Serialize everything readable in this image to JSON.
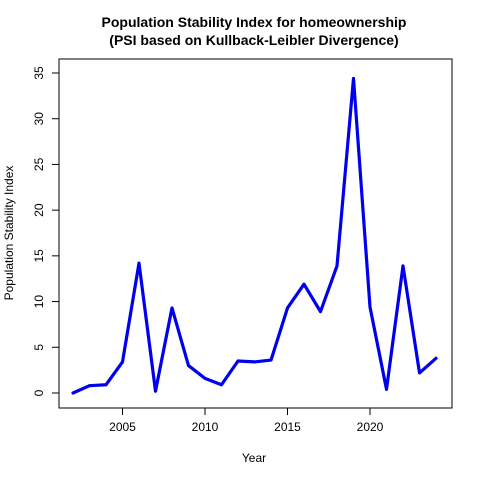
{
  "chart_data": {
    "type": "line",
    "title": "Population Stability Index for homeownership",
    "subtitle": "(PSI based on Kullback-Leibler Divergence)",
    "xlabel": "Year",
    "ylabel": "Population Stability Index",
    "xlim": [
      2002,
      2024
    ],
    "ylim": [
      0,
      35
    ],
    "x_ticks": [
      "2005",
      "2010",
      "2015",
      "2020"
    ],
    "y_ticks": [
      "0",
      "5",
      "10",
      "15",
      "20",
      "25",
      "30",
      "35"
    ],
    "grid": false,
    "legend": "none",
    "series": [
      {
        "color": "#0000ee",
        "x": [
          2002,
          2003,
          2004,
          2005,
          2006,
          2007,
          2008,
          2009,
          2010,
          2011,
          2012,
          2013,
          2014,
          2015,
          2016,
          2017,
          2018,
          2019,
          2020,
          2021,
          2022,
          2023,
          2024
        ],
        "values": [
          0.0,
          0.8,
          0.9,
          3.4,
          14.2,
          0.2,
          9.3,
          3.0,
          1.6,
          0.9,
          3.5,
          3.4,
          3.6,
          9.3,
          11.9,
          8.9,
          13.9,
          34.4,
          9.4,
          0.4,
          13.9,
          2.2,
          3.8
        ]
      }
    ]
  }
}
